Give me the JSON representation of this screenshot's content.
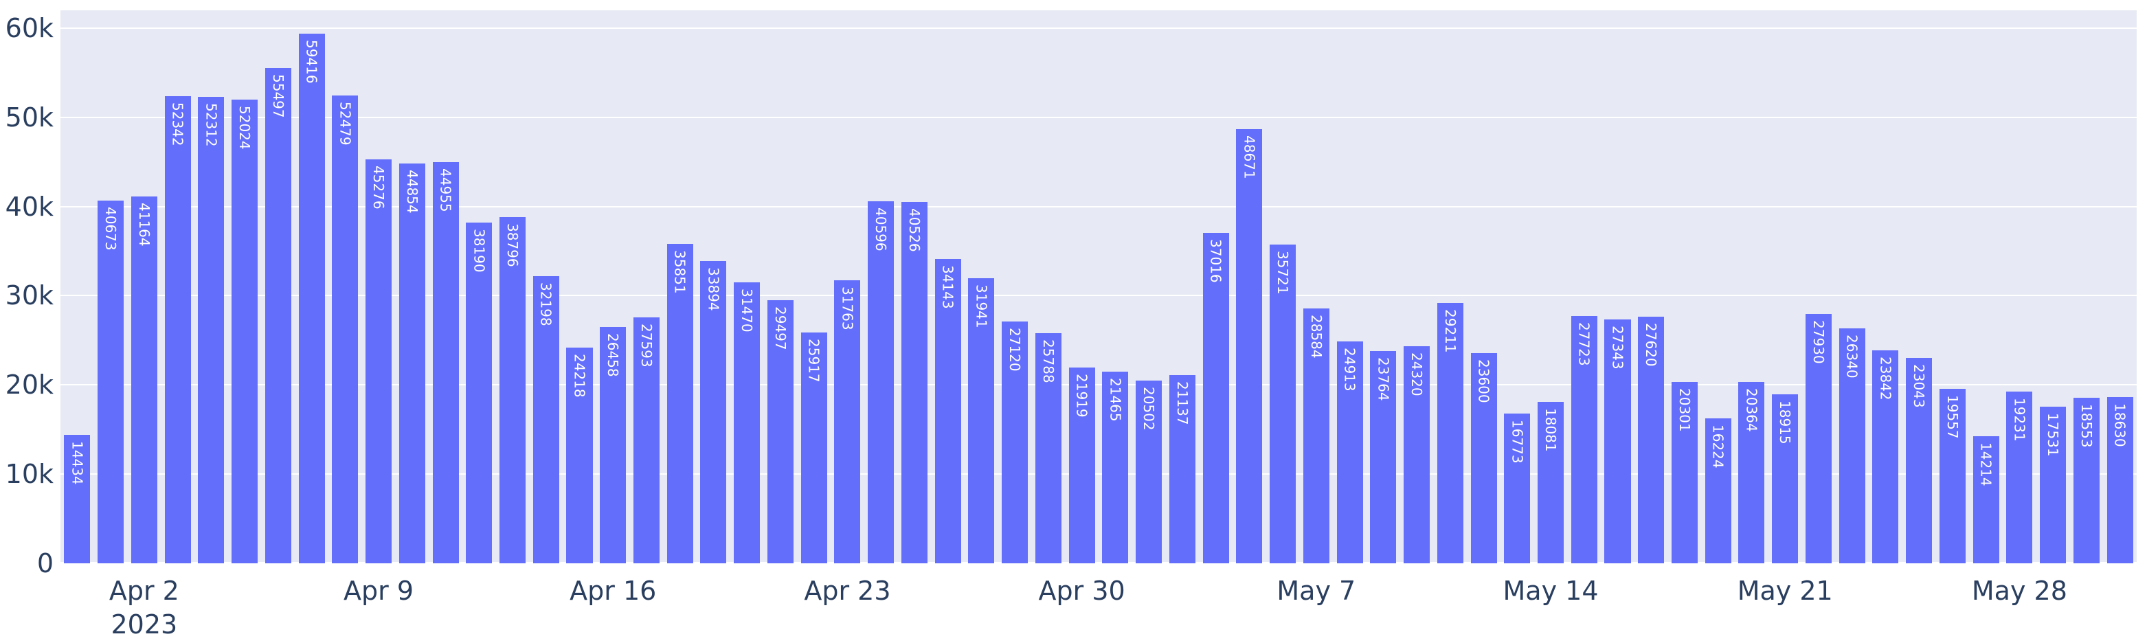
{
  "chart_data": {
    "type": "bar",
    "title": "",
    "xlabel": "",
    "ylabel": "",
    "legend": "none",
    "grid": "horizontal-white-gridlines",
    "plot_bg_color": "#E7EAF4",
    "bar_color": "#636EFA",
    "bar_label_color": "#FFFFFF",
    "tick_text_color": "#2A3F5F",
    "ylim": [
      0,
      62000
    ],
    "x": [
      "2023-03-31",
      "2023-04-01",
      "2023-04-02",
      "2023-04-03",
      "2023-04-04",
      "2023-04-05",
      "2023-04-06",
      "2023-04-07",
      "2023-04-08",
      "2023-04-09",
      "2023-04-10",
      "2023-04-11",
      "2023-04-12",
      "2023-04-13",
      "2023-04-14",
      "2023-04-15",
      "2023-04-16",
      "2023-04-17",
      "2023-04-18",
      "2023-04-19",
      "2023-04-20",
      "2023-04-21",
      "2023-04-22",
      "2023-04-23",
      "2023-04-24",
      "2023-04-25",
      "2023-04-26",
      "2023-04-27",
      "2023-04-28",
      "2023-04-29",
      "2023-04-30",
      "2023-05-01",
      "2023-05-02",
      "2023-05-03",
      "2023-05-04",
      "2023-05-05",
      "2023-05-06",
      "2023-05-07",
      "2023-05-08",
      "2023-05-09",
      "2023-05-10",
      "2023-05-11",
      "2023-05-12",
      "2023-05-13",
      "2023-05-14",
      "2023-05-15",
      "2023-05-16",
      "2023-05-17",
      "2023-05-18",
      "2023-05-19",
      "2023-05-20",
      "2023-05-21",
      "2023-05-22",
      "2023-05-23",
      "2023-05-24",
      "2023-05-25",
      "2023-05-26",
      "2023-05-27",
      "2023-05-28",
      "2023-05-29",
      "2023-05-30",
      "2023-05-31"
    ],
    "values": [
      14434,
      40673,
      41164,
      52342,
      52312,
      52024,
      55497,
      59416,
      52479,
      45276,
      44854,
      44955,
      38190,
      38796,
      32198,
      24218,
      26458,
      27593,
      35851,
      33894,
      31470,
      29497,
      25917,
      31763,
      40596,
      40526,
      34143,
      31941,
      27120,
      25788,
      21919,
      21465,
      20502,
      21137,
      37016,
      48671,
      35721,
      28584,
      24913,
      23764,
      24320,
      29211,
      23600,
      16773,
      18081,
      27723,
      27343,
      27620,
      20301,
      16224,
      20364,
      18915,
      27930,
      26340,
      23842,
      23043,
      19557,
      14214,
      19231,
      17531,
      18553,
      18630
    ],
    "x_ticks": [
      {
        "label": "Apr 2",
        "sub_label": "2023",
        "bar_index": 2
      },
      {
        "label": "Apr 9",
        "sub_label": "",
        "bar_index": 9
      },
      {
        "label": "Apr 16",
        "sub_label": "",
        "bar_index": 16
      },
      {
        "label": "Apr 23",
        "sub_label": "",
        "bar_index": 23
      },
      {
        "label": "Apr 30",
        "sub_label": "",
        "bar_index": 30
      },
      {
        "label": "May 7",
        "sub_label": "",
        "bar_index": 37
      },
      {
        "label": "May 14",
        "sub_label": "",
        "bar_index": 44
      },
      {
        "label": "May 21",
        "sub_label": "",
        "bar_index": 51
      },
      {
        "label": "May 28",
        "sub_label": "",
        "bar_index": 58
      }
    ],
    "y_ticks": [
      {
        "label": "0",
        "value": 0
      },
      {
        "label": "10k",
        "value": 10000
      },
      {
        "label": "20k",
        "value": 20000
      },
      {
        "label": "30k",
        "value": 30000
      },
      {
        "label": "40k",
        "value": 40000
      },
      {
        "label": "50k",
        "value": 50000
      },
      {
        "label": "60k",
        "value": 60000
      }
    ],
    "layout": {
      "plot_left": 88,
      "plot_top": 15,
      "plot_right": 3110,
      "plot_bottom": 820,
      "bar_width_fraction": 0.78
    }
  }
}
